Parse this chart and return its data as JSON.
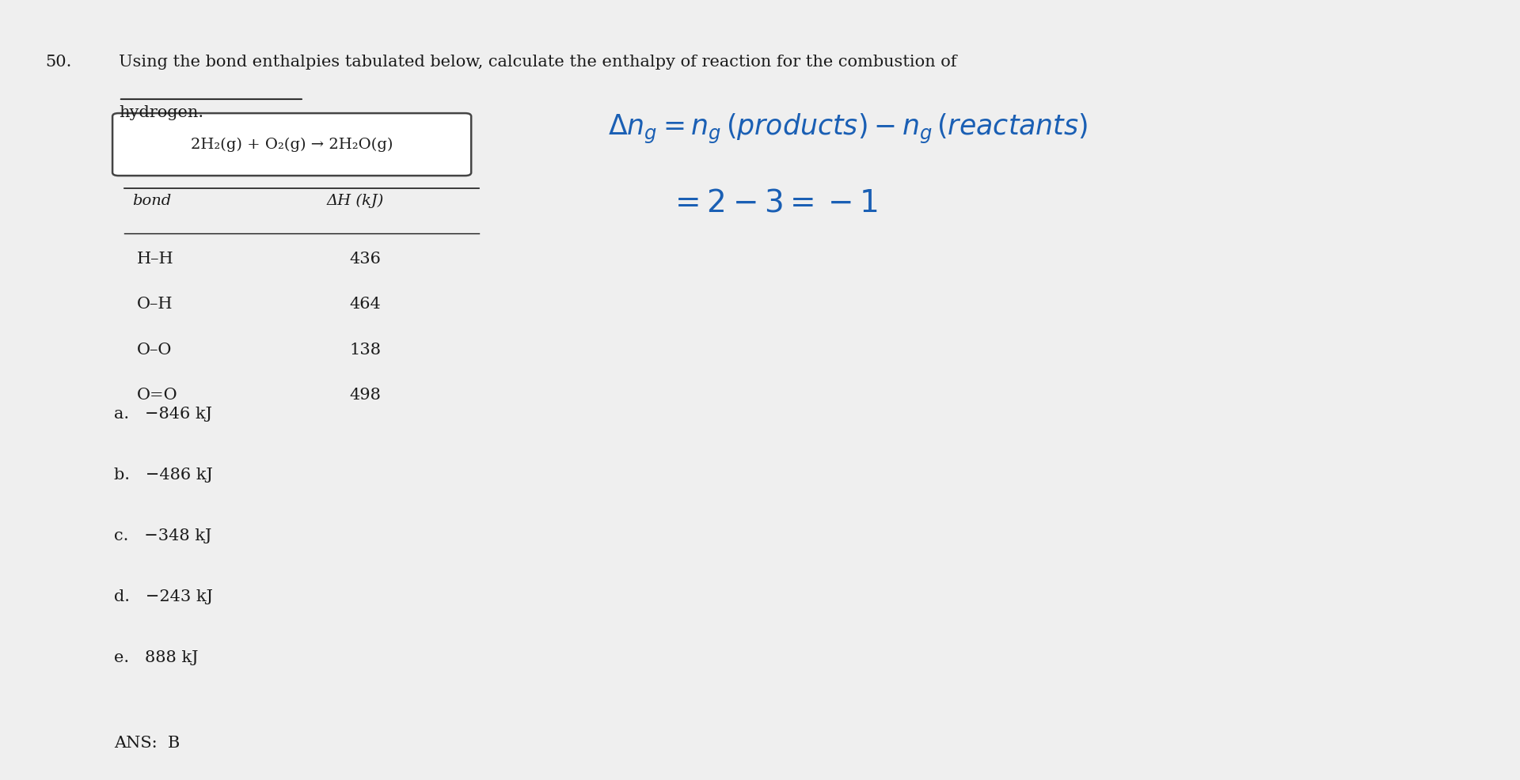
{
  "bg_color": "#c8c8c8",
  "white_area_color": "#efefef",
  "question_number": "50.",
  "question_text": "Using the bond enthalpies tabulated below, calculate the enthalpy of reaction for the combustion of",
  "question_text2": "hydrogen.",
  "reaction": "2H₂(g) + O₂(g) → 2H₂O(g)",
  "bond_header": "bond",
  "dH_header": "ΔH (kJ)",
  "bonds": [
    "H–H",
    "O–H",
    "O–O",
    "O=O"
  ],
  "dH_values": [
    "436",
    "464",
    "138",
    "498"
  ],
  "choices": [
    "a.   −846 kJ",
    "b.   −486 kJ",
    "c.   −348 kJ",
    "d.   −243 kJ",
    "e.   888 kJ"
  ],
  "answer": "ANS:  B",
  "handwritten_color": "#1a5fb4",
  "text_color": "#1a1a1a",
  "font_size_question": 15,
  "font_size_table": 14,
  "font_size_choices": 14,
  "font_size_handwritten": 22
}
